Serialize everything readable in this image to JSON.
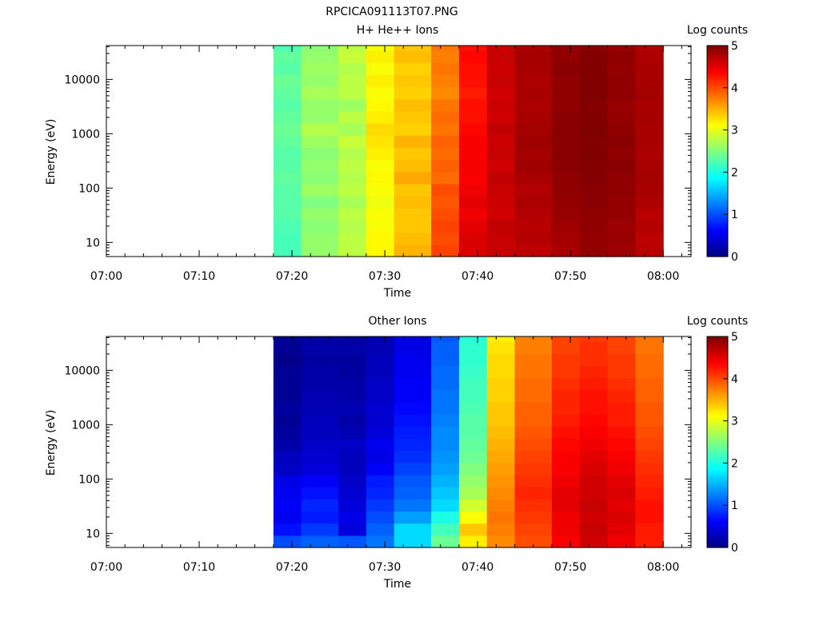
{
  "figure_title": "RPCICA091113T07.PNG",
  "colorbar": {
    "label": "Log counts",
    "ticks": [
      "0",
      "1",
      "2",
      "3",
      "4",
      "5"
    ],
    "range": [
      0,
      5
    ],
    "colormap": "jet"
  },
  "chart_data": [
    {
      "type": "heatmap",
      "title": "H+ He++ Ions",
      "xlabel": "Time",
      "ylabel": "Energy (eV)",
      "x_range": [
        "07:00",
        "08:03"
      ],
      "y_scale": "log",
      "ylim": [
        5.5,
        42000
      ],
      "x_ticks": [
        "07:00",
        "07:10",
        "07:20",
        "07:30",
        "07:40",
        "07:50",
        "08:00"
      ],
      "y_ticks": [
        "10",
        "100",
        "1000",
        "10000"
      ],
      "time_bins": [
        "07:18",
        "07:21",
        "07:25",
        "07:28",
        "07:31",
        "07:35",
        "07:38",
        "07:41",
        "07:44",
        "07:48",
        "07:51",
        "07:54",
        "07:57"
      ],
      "energy_bins_eV": [
        5.5,
        9.2,
        15.4,
        25.7,
        43,
        72,
        120,
        201,
        336,
        562,
        940,
        1572,
        2629,
        4397,
        7353,
        12298,
        20567,
        34397,
        42000
      ],
      "log_counts": [
        [
          2.22,
          2.6,
          2.8,
          3.15,
          3.5,
          4.05,
          4.55,
          4.65,
          4.7,
          4.8,
          4.9,
          4.85,
          4.72
        ],
        [
          2.22,
          2.6,
          2.8,
          3.15,
          3.45,
          4.0,
          4.55,
          4.65,
          4.75,
          4.82,
          4.9,
          4.88,
          4.7
        ],
        [
          2.25,
          2.55,
          2.75,
          3.1,
          3.4,
          4.05,
          4.5,
          4.68,
          4.72,
          4.85,
          4.92,
          4.86,
          4.75
        ],
        [
          2.3,
          2.6,
          2.8,
          3.1,
          3.4,
          4.0,
          4.45,
          4.6,
          4.75,
          4.88,
          4.92,
          4.9,
          4.72
        ],
        [
          2.3,
          2.5,
          2.7,
          3.05,
          3.45,
          3.95,
          4.5,
          4.62,
          4.78,
          4.9,
          4.95,
          4.9,
          4.78
        ],
        [
          2.3,
          2.65,
          2.8,
          3.1,
          3.4,
          4.0,
          4.45,
          4.65,
          4.75,
          4.92,
          4.95,
          4.92,
          4.8
        ],
        [
          2.35,
          2.55,
          2.75,
          3.15,
          3.55,
          3.85,
          4.4,
          4.68,
          4.8,
          4.92,
          4.98,
          4.92,
          4.82
        ],
        [
          2.3,
          2.6,
          2.8,
          3.1,
          3.45,
          3.9,
          4.42,
          4.6,
          4.85,
          4.95,
          4.98,
          4.95,
          4.8
        ],
        [
          2.3,
          2.55,
          2.75,
          3.2,
          3.4,
          3.85,
          4.4,
          4.65,
          4.82,
          4.95,
          5.0,
          4.92,
          4.78
        ],
        [
          2.35,
          2.65,
          2.85,
          3.25,
          3.5,
          3.9,
          4.4,
          4.62,
          4.85,
          4.95,
          4.98,
          4.95,
          4.8
        ],
        [
          2.4,
          2.75,
          2.7,
          3.3,
          3.35,
          3.8,
          4.35,
          4.68,
          4.82,
          4.95,
          5.0,
          4.92,
          4.8
        ],
        [
          2.35,
          2.6,
          2.8,
          3.2,
          3.4,
          3.85,
          4.3,
          4.6,
          4.8,
          4.95,
          5.0,
          4.9,
          4.82
        ],
        [
          2.3,
          2.6,
          2.65,
          3.15,
          3.45,
          3.8,
          4.3,
          4.62,
          4.78,
          4.92,
          4.98,
          4.88,
          4.8
        ],
        [
          2.35,
          2.7,
          2.8,
          3.1,
          3.35,
          3.7,
          4.25,
          4.6,
          4.8,
          4.92,
          5.0,
          4.92,
          4.82
        ],
        [
          2.4,
          2.6,
          2.8,
          3.2,
          3.4,
          3.75,
          4.3,
          4.65,
          4.78,
          4.92,
          5.0,
          4.92,
          4.8
        ],
        [
          2.3,
          2.65,
          2.75,
          3.1,
          3.35,
          3.8,
          4.3,
          4.62,
          4.8,
          4.95,
          5.0,
          4.9,
          4.8
        ],
        [
          2.35,
          2.6,
          2.85,
          3.2,
          3.45,
          3.75,
          4.35,
          4.65,
          4.82,
          4.92,
          4.98,
          4.92,
          4.78
        ],
        [
          2.25,
          2.55,
          2.8,
          3.1,
          3.4,
          3.8,
          4.3,
          4.62,
          4.78,
          4.9,
          4.95,
          4.88,
          4.75
        ]
      ]
    },
    {
      "type": "heatmap",
      "title": "Other Ions",
      "xlabel": "Time",
      "ylabel": "Energy (eV)",
      "x_range": [
        "07:00",
        "08:03"
      ],
      "y_scale": "log",
      "ylim": [
        5.5,
        42000
      ],
      "x_ticks": [
        "07:00",
        "07:10",
        "07:20",
        "07:30",
        "07:40",
        "07:50",
        "08:00"
      ],
      "y_ticks": [
        "10",
        "100",
        "1000",
        "10000"
      ],
      "time_bins": [
        "07:18",
        "07:21",
        "07:25",
        "07:28",
        "07:31",
        "07:35",
        "07:38",
        "07:41",
        "07:44",
        "07:48",
        "07:51",
        "07:54",
        "07:57"
      ],
      "energy_bins_eV": [
        5.5,
        9.2,
        15.4,
        25.7,
        43,
        72,
        120,
        201,
        336,
        562,
        940,
        1572,
        2629,
        4397,
        7353,
        12298,
        20567,
        34397,
        42000
      ],
      "log_counts": [
        [
          1.0,
          1.1,
          1.05,
          1.2,
          1.7,
          2.4,
          3.2,
          3.7,
          4.0,
          4.4,
          4.6,
          4.45,
          4.25
        ],
        [
          0.7,
          0.9,
          0.45,
          1.1,
          1.7,
          2.2,
          3.4,
          3.75,
          4.05,
          4.45,
          4.65,
          4.5,
          4.25
        ],
        [
          0.55,
          0.75,
          0.5,
          1.0,
          1.4,
          2.0,
          3.1,
          3.8,
          4.1,
          4.45,
          4.6,
          4.55,
          4.3
        ],
        [
          0.6,
          0.8,
          0.45,
          0.9,
          1.2,
          1.7,
          2.9,
          3.75,
          4.15,
          4.5,
          4.65,
          4.5,
          4.3
        ],
        [
          0.55,
          0.7,
          0.4,
          0.8,
          1.1,
          1.6,
          2.7,
          3.7,
          4.2,
          4.5,
          4.6,
          4.55,
          4.25
        ],
        [
          0.5,
          0.6,
          0.35,
          0.75,
          1.05,
          1.5,
          2.6,
          3.65,
          4.15,
          4.45,
          4.6,
          4.5,
          4.2
        ],
        [
          0.35,
          0.45,
          0.3,
          0.6,
          0.95,
          1.4,
          2.5,
          3.6,
          4.1,
          4.4,
          4.55,
          4.45,
          4.15
        ],
        [
          0.3,
          0.4,
          0.3,
          0.5,
          0.85,
          1.35,
          2.4,
          3.55,
          4.05,
          4.4,
          4.5,
          4.4,
          4.1
        ],
        [
          0.2,
          0.35,
          0.35,
          0.55,
          0.8,
          1.3,
          2.35,
          3.5,
          4.0,
          4.35,
          4.45,
          4.35,
          4.05
        ],
        [
          0.15,
          0.3,
          0.25,
          0.45,
          0.75,
          1.3,
          2.3,
          3.45,
          3.95,
          4.3,
          4.4,
          4.3,
          4.0
        ],
        [
          0.1,
          0.3,
          0.2,
          0.4,
          0.7,
          1.25,
          2.3,
          3.4,
          3.9,
          4.25,
          4.35,
          4.25,
          3.95
        ],
        [
          0.15,
          0.25,
          0.25,
          0.4,
          0.65,
          1.2,
          2.25,
          3.4,
          3.9,
          4.2,
          4.3,
          4.25,
          3.95
        ],
        [
          0.1,
          0.25,
          0.2,
          0.35,
          0.6,
          1.2,
          2.2,
          3.35,
          3.85,
          4.2,
          4.3,
          4.2,
          3.9
        ],
        [
          0.1,
          0.2,
          0.2,
          0.35,
          0.6,
          1.15,
          2.2,
          3.35,
          3.85,
          4.15,
          4.25,
          4.15,
          3.9
        ],
        [
          0.1,
          0.2,
          0.15,
          0.3,
          0.55,
          1.15,
          2.15,
          3.3,
          3.8,
          4.1,
          4.2,
          4.1,
          3.85
        ],
        [
          0.05,
          0.15,
          0.15,
          0.3,
          0.55,
          1.1,
          2.1,
          3.3,
          3.8,
          4.1,
          4.15,
          4.1,
          3.85
        ],
        [
          0.1,
          0.2,
          0.2,
          0.25,
          0.5,
          1.1,
          2.1,
          3.25,
          3.75,
          4.05,
          4.15,
          4.05,
          3.8
        ],
        [
          0.1,
          0.15,
          0.15,
          0.25,
          0.5,
          1.05,
          2.05,
          3.2,
          3.75,
          4.05,
          4.1,
          4.05,
          3.8
        ]
      ]
    }
  ]
}
